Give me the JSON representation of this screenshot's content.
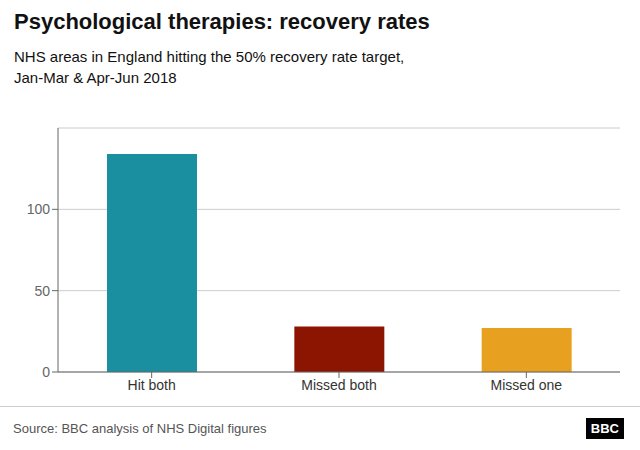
{
  "chart_data": {
    "type": "bar",
    "title": "Psychological therapies: recovery rates",
    "subtitle": "NHS areas in England hitting the 50% recovery rate target,\nJan-Mar & Apr-Jun 2018",
    "categories": [
      "Hit both",
      "Missed both",
      "Missed one"
    ],
    "values": [
      134,
      28,
      27
    ],
    "colors": [
      "#1a8fa0",
      "#8b1500",
      "#e8a020"
    ],
    "ylim": [
      0,
      150
    ],
    "yticks": [
      0,
      50,
      100
    ],
    "grid": true,
    "annotations": [
      "Source: BBC analysis of NHS Digital figures",
      "BBC"
    ]
  }
}
